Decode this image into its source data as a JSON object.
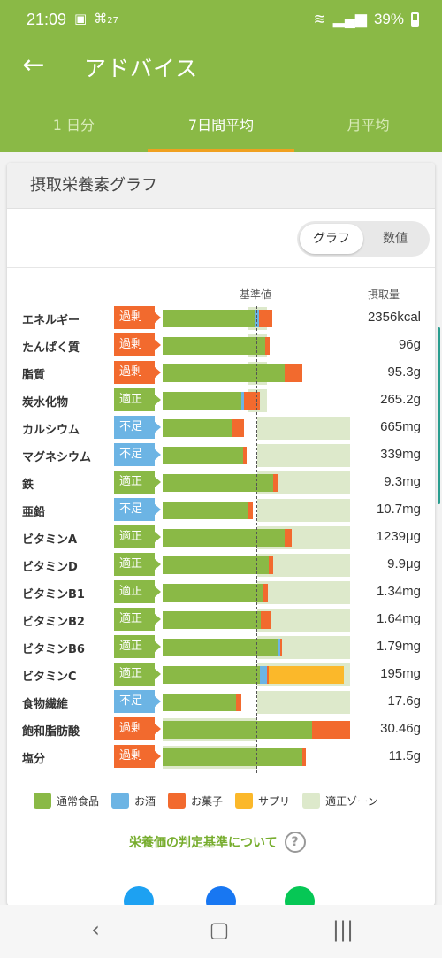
{
  "status": {
    "time": "21:09",
    "notif": "27",
    "battery": "39%"
  },
  "app": {
    "title": "アドバイス",
    "back_icon": "arrow-left-icon"
  },
  "tabs": [
    {
      "label": "1 日分",
      "active": false
    },
    {
      "label": "7日間平均",
      "active": true
    },
    {
      "label": "月平均",
      "active": false
    }
  ],
  "card": {
    "title": "摂取栄養素グラフ",
    "toggle": {
      "graph": "グラフ",
      "numeric": "数値",
      "selected": "graph"
    },
    "col_base": "基準値",
    "col_intake": "摂取量"
  },
  "colors": {
    "normal": "#8ab946",
    "alcohol": "#6cb4e4",
    "snacks": "#f26a2e",
    "supplement": "#fbb82a",
    "zone": "#dde9cb",
    "badge_excess": "#f26a2e",
    "badge_ok": "#8ab946",
    "badge_low": "#6cb4e4"
  },
  "chart_data": {
    "type": "bar",
    "reference_percent": 100,
    "nutrients": [
      {
        "name": "エネルギー",
        "status": "過剰",
        "value": "2356kcal",
        "normal": 98,
        "alcohol": 4,
        "snacks": 14,
        "supplement": 0,
        "zone_low": 90,
        "zone_high": 110
      },
      {
        "name": "たんぱく質",
        "status": "過剰",
        "value": "96g",
        "normal": 108,
        "alcohol": 0,
        "snacks": 5,
        "supplement": 0,
        "zone_low": 90,
        "zone_high": 110
      },
      {
        "name": "脂質",
        "status": "過剰",
        "value": "95.3g",
        "normal": 129,
        "alcohol": 0,
        "snacks": 19,
        "supplement": 0,
        "zone_low": 90,
        "zone_high": 110
      },
      {
        "name": "炭水化物",
        "status": "適正",
        "value": "265.2g",
        "normal": 83,
        "alcohol": 3,
        "snacks": 17,
        "supplement": 0,
        "zone_low": 90,
        "zone_high": 110
      },
      {
        "name": "カルシウム",
        "status": "不足",
        "value": "665mg",
        "normal": 74,
        "alcohol": 0,
        "snacks": 12,
        "supplement": 0,
        "zone_low": 100,
        "zone_high": 200
      },
      {
        "name": "マグネシウム",
        "status": "不足",
        "value": "339mg",
        "normal": 85,
        "alcohol": 0,
        "snacks": 4,
        "supplement": 0,
        "zone_low": 100,
        "zone_high": 200
      },
      {
        "name": "鉄",
        "status": "適正",
        "value": "9.3mg",
        "normal": 117,
        "alcohol": 0,
        "snacks": 5,
        "supplement": 0,
        "zone_low": 100,
        "zone_high": 200
      },
      {
        "name": "亜鉛",
        "status": "不足",
        "value": "10.7mg",
        "normal": 90,
        "alcohol": 0,
        "snacks": 5,
        "supplement": 0,
        "zone_low": 100,
        "zone_high": 200
      },
      {
        "name": "ビタミンA",
        "status": "適正",
        "value": "1239μg",
        "normal": 129,
        "alcohol": 0,
        "snacks": 7,
        "supplement": 0,
        "zone_low": 100,
        "zone_high": 200
      },
      {
        "name": "ビタミンD",
        "status": "適正",
        "value": "9.9μg",
        "normal": 112,
        "alcohol": 0,
        "snacks": 5,
        "supplement": 0,
        "zone_low": 100,
        "zone_high": 200
      },
      {
        "name": "ビタミンB1",
        "status": "適正",
        "value": "1.34mg",
        "normal": 106,
        "alcohol": 0,
        "snacks": 5,
        "supplement": 0,
        "zone_low": 100,
        "zone_high": 200
      },
      {
        "name": "ビタミンB2",
        "status": "適正",
        "value": "1.64mg",
        "normal": 104,
        "alcohol": 0,
        "snacks": 11,
        "supplement": 0,
        "zone_low": 100,
        "zone_high": 200
      },
      {
        "name": "ビタミンB6",
        "status": "適正",
        "value": "1.79mg",
        "normal": 122,
        "alcohol": 2,
        "snacks": 2,
        "supplement": 0,
        "zone_low": 100,
        "zone_high": 200
      },
      {
        "name": "ビタミンC",
        "status": "適正",
        "value": "195mg",
        "normal": 103,
        "alcohol": 7,
        "snacks": 2,
        "supplement": 80,
        "zone_low": 100,
        "zone_high": 200
      },
      {
        "name": "食物繊維",
        "status": "不足",
        "value": "17.6g",
        "normal": 78,
        "alcohol": 0,
        "snacks": 5,
        "supplement": 0,
        "zone_low": 100,
        "zone_high": 200
      },
      {
        "name": "飽和脂肪酸",
        "status": "過剰",
        "value": "30.46g",
        "normal": 158,
        "alcohol": 0,
        "snacks": 40,
        "supplement": 0,
        "zone_low": 0,
        "zone_high": 100
      },
      {
        "name": "塩分",
        "status": "過剰",
        "value": "11.5g",
        "normal": 148,
        "alcohol": 0,
        "snacks": 3,
        "supplement": 0,
        "zone_low": 0,
        "zone_high": 100
      }
    ]
  },
  "legend": [
    {
      "label": "通常食品",
      "color": "#8ab946"
    },
    {
      "label": "お酒",
      "color": "#6cb4e4"
    },
    {
      "label": "お菓子",
      "color": "#f26a2e"
    },
    {
      "label": "サプリ",
      "color": "#fbb82a"
    },
    {
      "label": "適正ゾーン",
      "color": "#dde9cb"
    }
  ],
  "criteria_link": "栄養価の判定基準について",
  "share": [
    {
      "icon": "twitter-icon",
      "color": "#1da1f2"
    },
    {
      "icon": "facebook-icon",
      "color": "#1877f2"
    },
    {
      "icon": "line-icon",
      "color": "#06c755"
    }
  ],
  "nav": {
    "back": "back-nav-icon",
    "home": "home-nav-icon",
    "recents": "recents-nav-icon"
  }
}
